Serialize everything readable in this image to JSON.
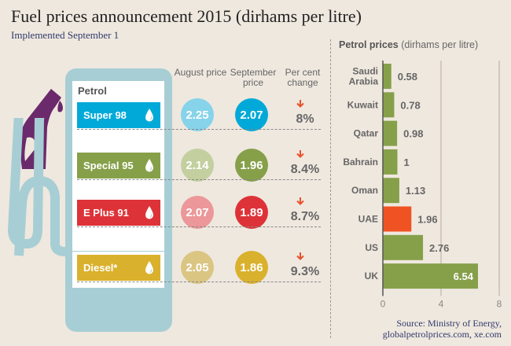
{
  "header": {
    "title": "Fuel prices announcement 2015 (dirhams per litre)",
    "subtitle": "Implemented September 1"
  },
  "pump": {
    "section_label": "Petrol",
    "columns": {
      "august": "August price",
      "september": "September price",
      "change": "Per cent change"
    },
    "fuels": [
      {
        "name": "Super 98",
        "august": "2.25",
        "september": "2.07",
        "change": "8%",
        "direction": "down",
        "tag_color": "#00a9d8",
        "august_color": "#86d3ea",
        "september_color": "#00a9d8"
      },
      {
        "name": "Special 95",
        "august": "2.14",
        "september": "1.96",
        "change": "8.4%",
        "direction": "down",
        "tag_color": "#86a04a",
        "august_color": "#c3cf9f",
        "september_color": "#86a04a"
      },
      {
        "name": "E Plus 91",
        "august": "2.07",
        "september": "1.89",
        "change": "8.7%",
        "direction": "down",
        "tag_color": "#dd3338",
        "august_color": "#ec9799",
        "september_color": "#dd3338"
      },
      {
        "name": "Diesel*",
        "august": "2.05",
        "september": "1.86",
        "change": "9.3%",
        "direction": "down",
        "tag_color": "#d9b12c",
        "august_color": "#dac582",
        "september_color": "#d9b12c"
      }
    ],
    "icons": {
      "drop": "droplet-icon",
      "arrow": "arrow-down-icon",
      "nozzle": "fuel-nozzle-icon"
    }
  },
  "chart_data": {
    "type": "bar",
    "orientation": "horizontal",
    "title": "Petrol prices",
    "title_units": "(dirhams per litre)",
    "categories": [
      "Saudi Arabia",
      "Kuwait",
      "Qatar",
      "Bahrain",
      "Oman",
      "UAE",
      "US",
      "UK"
    ],
    "category_lines": [
      [
        "Saudi",
        "Arabia"
      ],
      [
        "Kuwait"
      ],
      [
        "Qatar"
      ],
      [
        "Bahrain"
      ],
      [
        "Oman"
      ],
      [
        "UAE"
      ],
      [
        "US"
      ],
      [
        "UK"
      ]
    ],
    "values": [
      0.58,
      0.78,
      0.98,
      1,
      1.13,
      1.96,
      2.76,
      6.54
    ],
    "value_labels": [
      "0.58",
      "0.78",
      "0.98",
      "1",
      "1.13",
      "1.96",
      "2.76",
      "6.54"
    ],
    "highlight": "UAE",
    "bar_color": "#86a04a",
    "highlight_color": "#f05323",
    "xlim": [
      0,
      8
    ],
    "xticks": [
      "0",
      "4",
      "8"
    ],
    "xtick_values": [
      0,
      4,
      8
    ],
    "grid": true
  },
  "footer": {
    "source_line1": "Source: Ministry of Energy,",
    "source_line2": "globalpetrolprices.com, xe.com"
  }
}
